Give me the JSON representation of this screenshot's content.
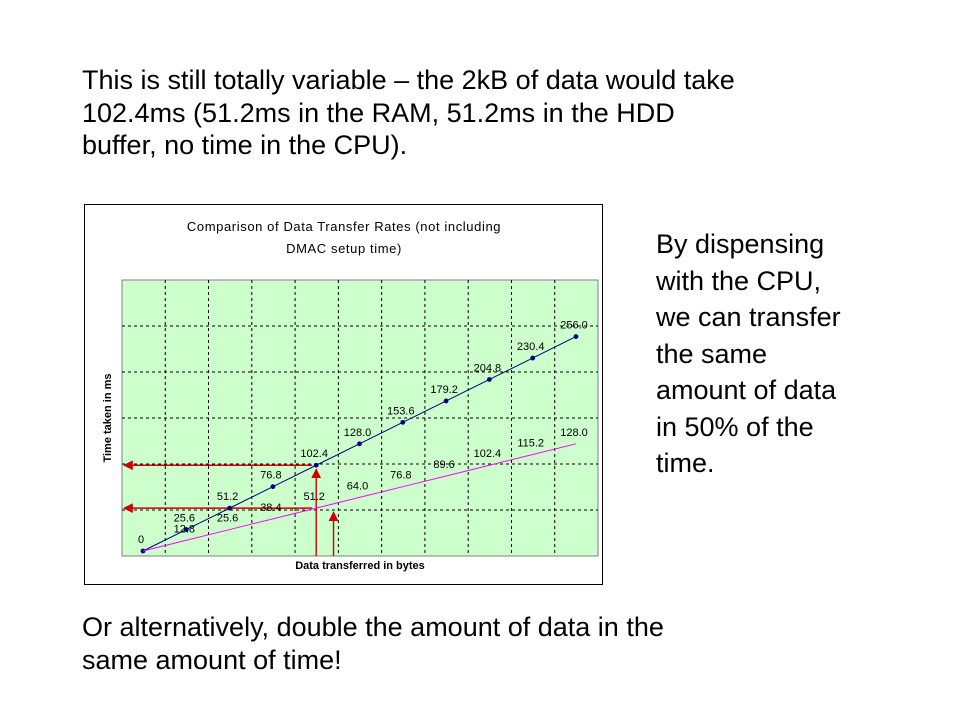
{
  "slide": {
    "top_lines": [
      "This is still totally variable – the 2kB of data would take",
      "102.4ms (51.2ms in the RAM, 51.2ms in the HDD",
      "buffer, no time in the CPU)."
    ],
    "side_lines": [
      "By dispensing",
      "with the CPU,",
      "we can transfer",
      "the same",
      "amount of data",
      "in 50% of the",
      "time."
    ],
    "bottom_lines": [
      "Or alternatively, double the amount of data in the",
      "same amount of time!"
    ]
  },
  "chart_data": {
    "type": "line",
    "title_lines": [
      "Comparison of Data Transfer Rates (not including",
      "DMAC setup time)"
    ],
    "xlabel": "Data transferred in bytes",
    "ylabel": "Time taken in ms",
    "x_points": [
      0,
      1,
      2,
      3,
      4,
      5,
      6,
      7,
      8,
      9,
      10
    ],
    "ylim": [
      0,
      256
    ],
    "grid": true,
    "colors": {
      "plot_bg": "#ccffcc",
      "series_1": "#000080",
      "series_2": "#ff00ff",
      "annotation": "#cc0000"
    },
    "series": [
      {
        "values": [
          0,
          25.6,
          51.2,
          76.8,
          102.4,
          128.0,
          153.6,
          179.2,
          204.8,
          230.4,
          256.0
        ],
        "labels": [
          "0",
          "25.6",
          "51.2",
          "76.8",
          "102.4",
          "128.0",
          "153.6",
          "179.2",
          "204.8",
          "230.4",
          "256.0"
        ]
      },
      {
        "values": [
          0,
          12.8,
          25.6,
          38.4,
          51.2,
          64.0,
          76.8,
          89.6,
          102.4,
          115.2,
          128.0
        ],
        "labels": [
          "",
          "12.8",
          "25.6",
          "38.4",
          "51.2",
          "64.0",
          "76.8",
          "89.6",
          "102.4",
          "115.2",
          "128.0"
        ]
      }
    ],
    "annotations": {
      "horizontal_arrows_at_y": [
        102.4,
        51.2
      ],
      "vertical_arrows_at_x": [
        4,
        4.4
      ]
    }
  }
}
